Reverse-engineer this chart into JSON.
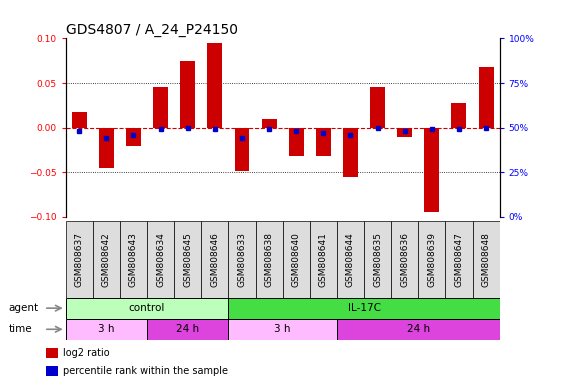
{
  "title": "GDS4807 / A_24_P24150",
  "samples": [
    "GSM808637",
    "GSM808642",
    "GSM808643",
    "GSM808634",
    "GSM808645",
    "GSM808646",
    "GSM808633",
    "GSM808638",
    "GSM808640",
    "GSM808641",
    "GSM808644",
    "GSM808635",
    "GSM808636",
    "GSM808639",
    "GSM808647",
    "GSM808648"
  ],
  "log2_ratio": [
    0.018,
    -0.045,
    -0.02,
    0.046,
    0.075,
    0.095,
    -0.048,
    0.01,
    -0.032,
    -0.032,
    -0.055,
    0.046,
    -0.01,
    -0.095,
    0.028,
    0.068
  ],
  "percentile": [
    48,
    44,
    46,
    49,
    50,
    49,
    44,
    49,
    48,
    47,
    46,
    50,
    48,
    49,
    49,
    50
  ],
  "bar_color": "#cc0000",
  "dot_color": "#0000cc",
  "dashed_line_color": "#cc0000",
  "ylim": [
    -0.1,
    0.1
  ],
  "yticks": [
    -0.1,
    -0.05,
    0.0,
    0.05,
    0.1
  ],
  "y2lim": [
    0,
    100
  ],
  "y2ticks": [
    0,
    25,
    50,
    75,
    100
  ],
  "y2ticklabels": [
    "0%",
    "25%",
    "50%",
    "75%",
    "100%"
  ],
  "agent_groups": [
    {
      "label": "control",
      "start": 0,
      "end": 6,
      "color": "#bbffbb"
    },
    {
      "label": "IL-17C",
      "start": 6,
      "end": 16,
      "color": "#44dd44"
    }
  ],
  "time_groups": [
    {
      "label": "3 h",
      "start": 0,
      "end": 3,
      "color": "#ffbbff"
    },
    {
      "label": "24 h",
      "start": 3,
      "end": 6,
      "color": "#dd44dd"
    },
    {
      "label": "3 h",
      "start": 6,
      "end": 10,
      "color": "#ffbbff"
    },
    {
      "label": "24 h",
      "start": 10,
      "end": 16,
      "color": "#dd44dd"
    }
  ],
  "legend_items": [
    {
      "color": "#cc0000",
      "label": "log2 ratio"
    },
    {
      "color": "#0000cc",
      "label": "percentile rank within the sample"
    }
  ],
  "agent_label": "agent",
  "time_label": "time",
  "title_fontsize": 10,
  "tick_fontsize": 6.5,
  "label_fontsize": 7.5,
  "bar_width": 0.55,
  "sample_box_color": "#dddddd",
  "background_color": "#ffffff"
}
